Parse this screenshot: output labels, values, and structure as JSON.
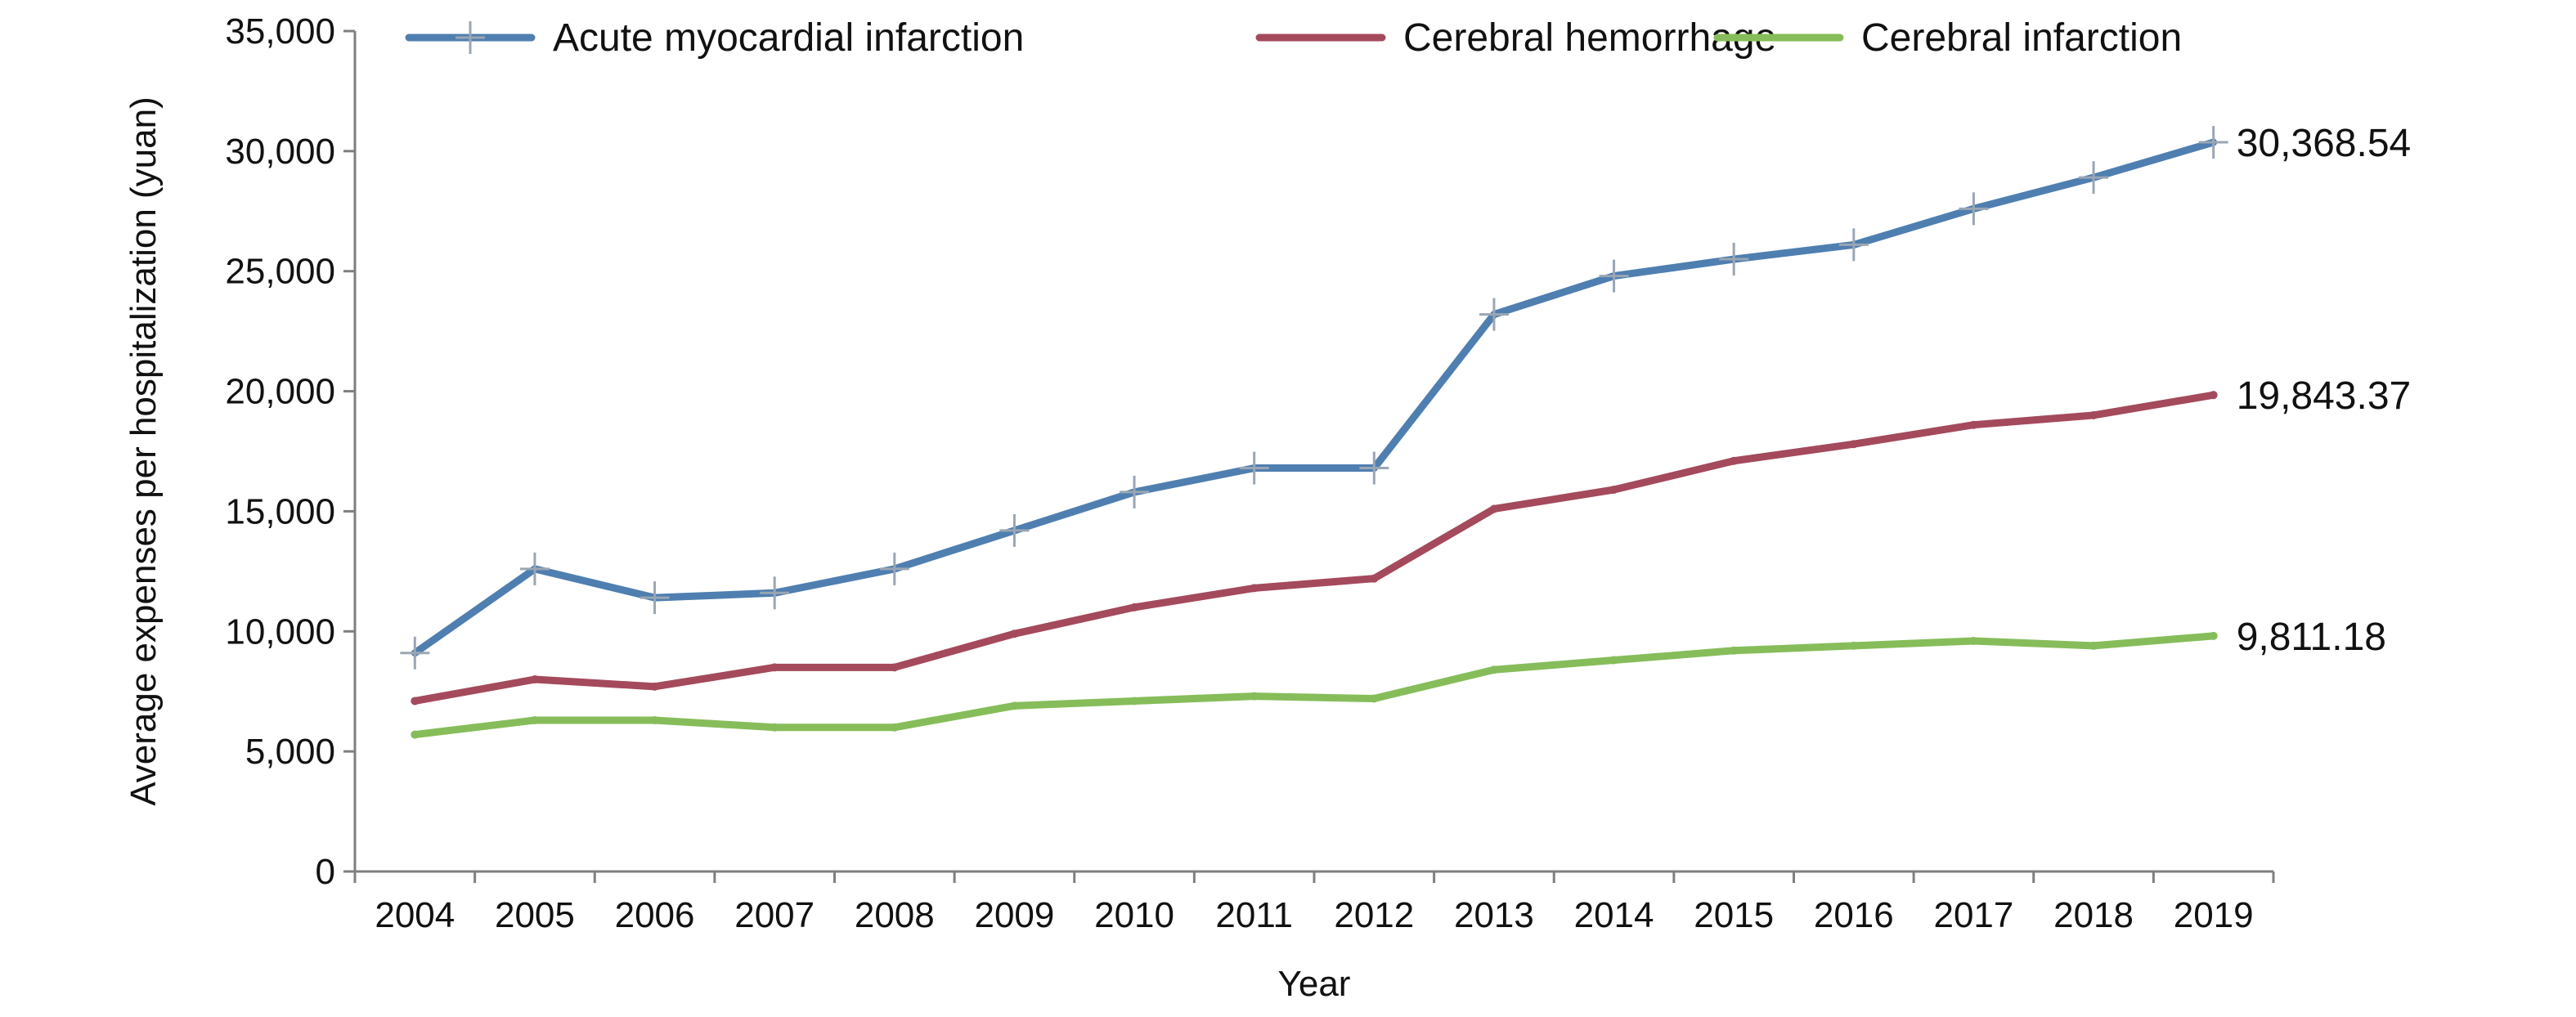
{
  "chart_data": {
    "type": "line",
    "xlabel": "Year",
    "ylabel": "Average expenses per hospitalization (yuan)",
    "categories": [
      "2004",
      "2005",
      "2006",
      "2007",
      "2008",
      "2009",
      "2010",
      "2011",
      "2012",
      "2013",
      "2014",
      "2015",
      "2016",
      "2017",
      "2018",
      "2019"
    ],
    "ylim": [
      0,
      35000
    ],
    "yticks": [
      0,
      5000,
      10000,
      15000,
      20000,
      25000,
      30000,
      35000
    ],
    "ytick_labels": [
      "0",
      "5,000",
      "10,000",
      "15,000",
      "20,000",
      "25,000",
      "30,000",
      "35,000"
    ],
    "grid": false,
    "legend_position": "top",
    "series": [
      {
        "name": "Acute myocardial infarction",
        "color": "#4f7fb0",
        "marker": "plus",
        "values": [
          9100,
          12600,
          11400,
          11600,
          12600,
          14200,
          15800,
          16800,
          16800,
          23200,
          24800,
          25500,
          26100,
          27600,
          28900,
          30368.54
        ],
        "end_label": "30,368.54"
      },
      {
        "name": "Cerebral hemorrhage",
        "color": "#a44a5c",
        "marker": "none",
        "values": [
          7100,
          8000,
          7700,
          8500,
          8500,
          9900,
          11000,
          11800,
          12200,
          15100,
          15900,
          17100,
          17800,
          18600,
          19000,
          19843.37
        ],
        "end_label": "19,843.37"
      },
      {
        "name": "Cerebral infarction",
        "color": "#86bd5a",
        "marker": "none",
        "values": [
          5700,
          6300,
          6300,
          6000,
          6000,
          6900,
          7100,
          7300,
          7200,
          8400,
          8800,
          9200,
          9400,
          9600,
          9400,
          9811.18
        ],
        "end_label": "9,811.18"
      }
    ]
  }
}
